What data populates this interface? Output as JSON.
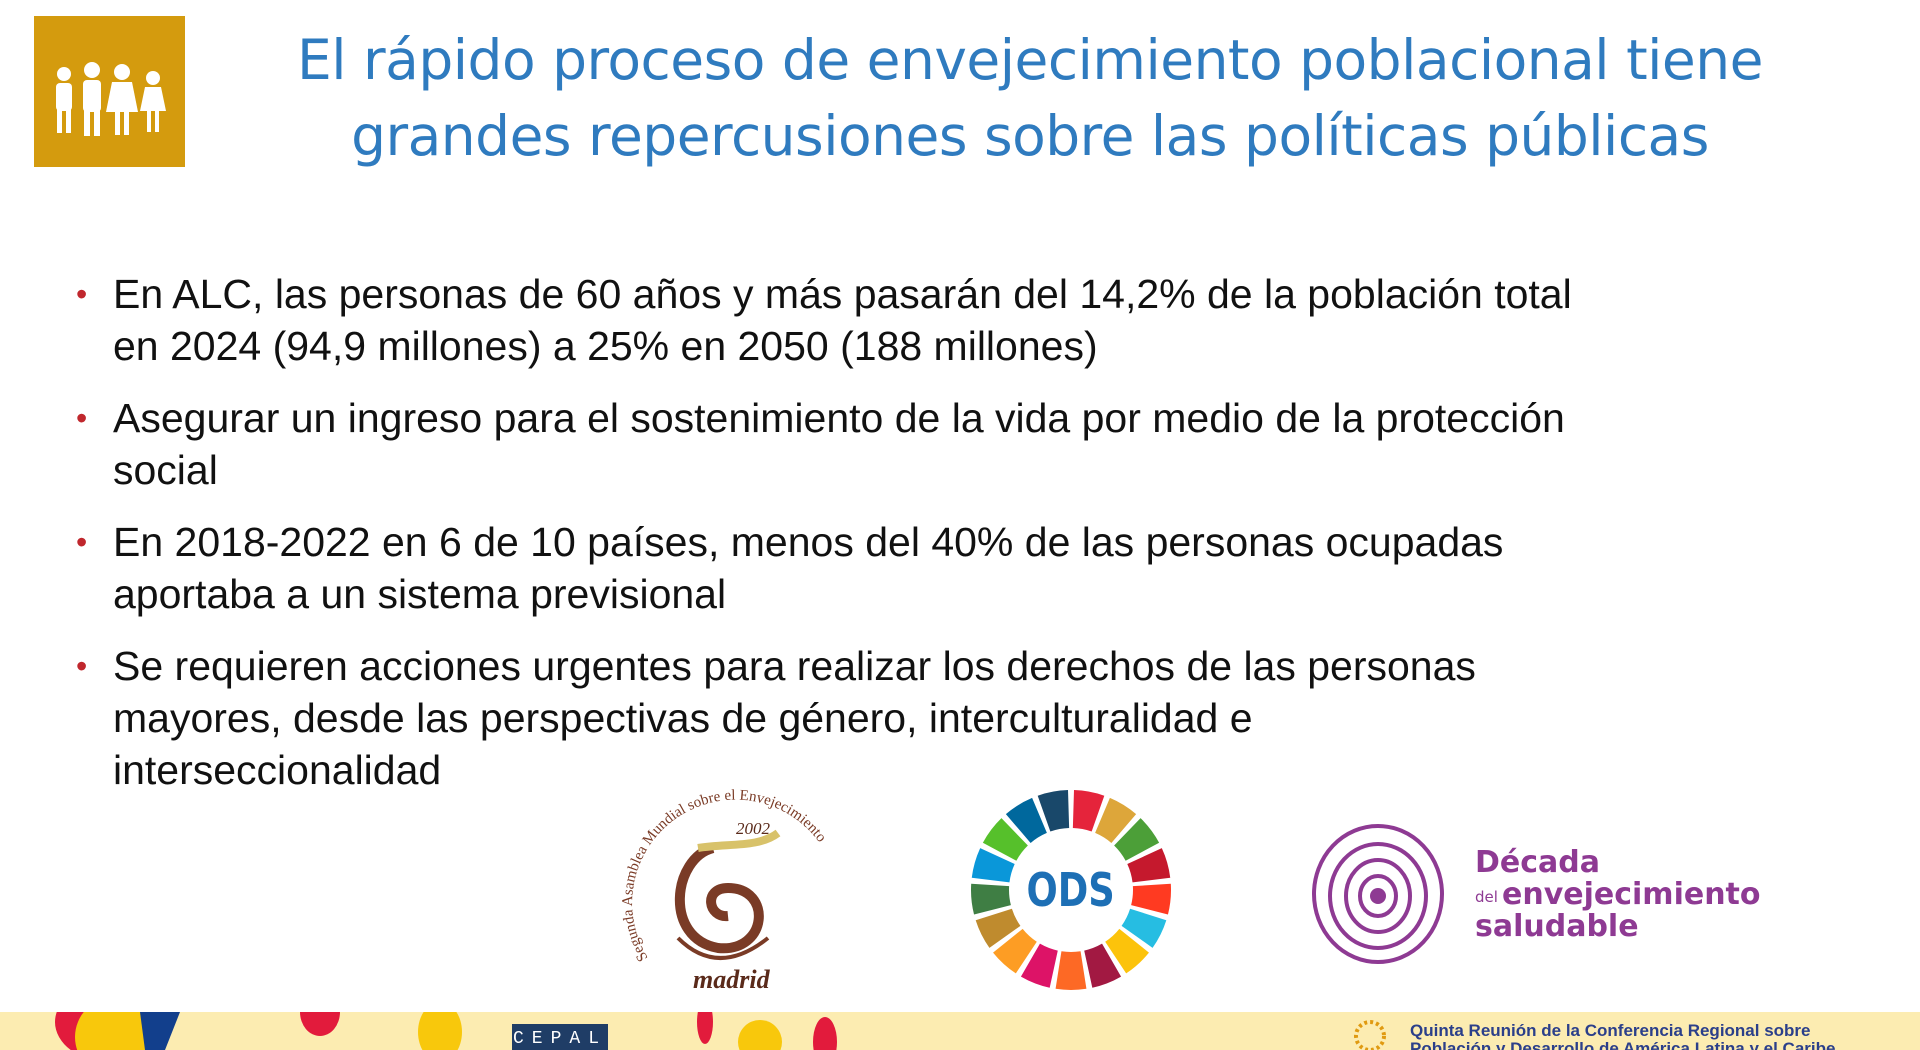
{
  "header": {
    "icon": "family-people-icon",
    "icon_color": "#d49b0e",
    "title_line1": "El rápido proceso de envejecimiento poblacional tiene",
    "title_line2": "grandes repercusiones sobre las políticas públicas",
    "title_color": "#2f7bbf"
  },
  "bullets": [
    {
      "line1": "En ALC, las personas de 60 años y más pasarán del 14,2% de la población total",
      "line2": "en 2024 (94,9 millones) a 25% en 2050 (188 millones)"
    },
    {
      "line1": "Asegurar un ingreso para el sostenimiento de la vida por medio de la protección",
      "line2": "social"
    },
    {
      "line1": "En 2018-2022 en 6 de 10 países, menos del 40% de las personas ocupadas",
      "line2": "aportaba a un sistema previsional"
    },
    {
      "line1": "Se requieren acciones urgentes para realizar los derechos de las personas",
      "line2": "mayores, desde las perspectivas de género, interculturalidad e",
      "line3": "interseccionalidad"
    }
  ],
  "bullet_color": "#c0272d",
  "logos": {
    "madrid": {
      "arc_text": "Segunda Asamblea Mundial sobre el Envejecimiento",
      "year": "2002",
      "city": "madrid"
    },
    "ods": {
      "label": "ODS"
    },
    "decada": {
      "line1": "Década",
      "small": "del",
      "line2": "envejecimiento",
      "line3": "saludable",
      "color": "#8e3a93"
    }
  },
  "footer": {
    "cepal": "CEPAL",
    "conference_line1": "Quinta Reunión de la Conferencia Regional sobre",
    "conference_line2": "Población y Desarrollo de América Latina y el Caribe"
  }
}
